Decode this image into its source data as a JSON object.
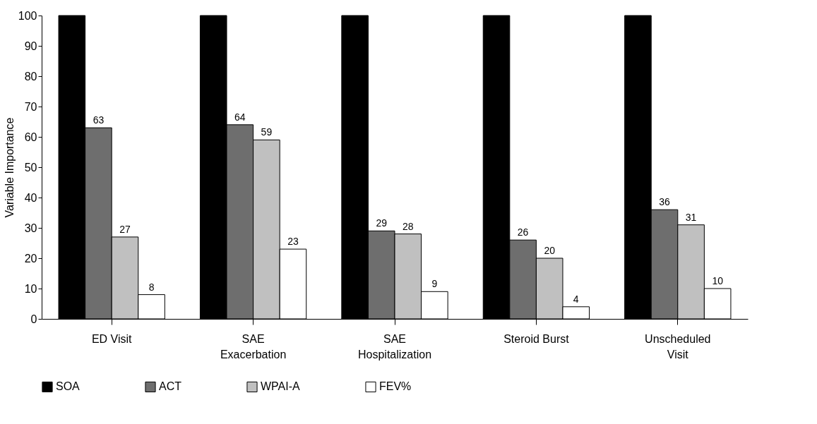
{
  "chart_data": {
    "type": "bar",
    "ylabel": "Variable Importance",
    "categories": [
      "ED Visit",
      "SAE\nExacerbation",
      "SAE\nHospitalization",
      "Steroid Burst",
      "Unscheduled\nVisit"
    ],
    "series": [
      {
        "name": "SOA",
        "color": "#000000",
        "values": [
          100,
          100,
          100,
          100,
          100
        ],
        "value_labels": [
          null,
          null,
          null,
          null,
          null
        ]
      },
      {
        "name": "ACT",
        "color": "#6e6e6e",
        "values": [
          63,
          64,
          29,
          26,
          36
        ],
        "value_labels": [
          "63",
          "64",
          "29",
          "26",
          "36"
        ]
      },
      {
        "name": "WPAI-A",
        "color": "#c0c0c0",
        "values": [
          27,
          59,
          28,
          20,
          31
        ],
        "value_labels": [
          "27",
          "59",
          "28",
          "20",
          "31"
        ]
      },
      {
        "name": "FEV%",
        "color": "#ffffff",
        "values": [
          8,
          23,
          9,
          4,
          10
        ],
        "value_labels": [
          "8",
          "23",
          "9",
          "4",
          "10"
        ]
      }
    ],
    "ylim": [
      0,
      100
    ],
    "yticks": [
      0,
      10,
      20,
      30,
      40,
      50,
      60,
      70,
      80,
      90,
      100
    ],
    "grid": false,
    "legend": "bottom"
  }
}
